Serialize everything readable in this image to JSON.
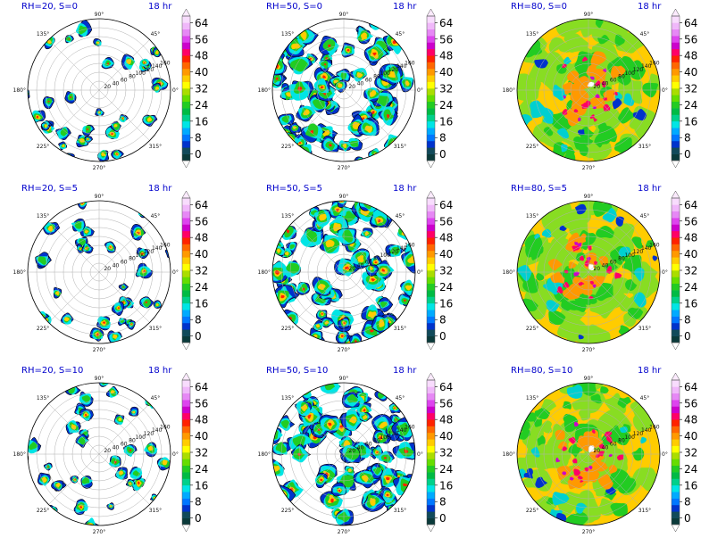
{
  "chart_data": {
    "type": "heatmap",
    "subtype": "polar-filled-contour",
    "layout": "3x3 grid",
    "colorbar": {
      "ticks": [
        0,
        8,
        16,
        24,
        32,
        40,
        48,
        56,
        64
      ],
      "colors": [
        "#0a3a3a",
        "#114a5a",
        "#0033cc",
        "#0077ff",
        "#00aaff",
        "#00e5e5",
        "#00d08a",
        "#00bb44",
        "#22cc22",
        "#66dd00",
        "#aadd00",
        "#ffff00",
        "#ffcc00",
        "#ff9900",
        "#ff6600",
        "#ff2200",
        "#ff0066",
        "#cc00cc",
        "#dd44ee",
        "#e688f5",
        "#f0b8fa",
        "#f8dcfd"
      ],
      "extend": "both"
    },
    "angular_ticks": [
      "90°",
      "45°",
      "0°",
      "315°",
      "270°",
      "225°",
      "180°",
      "135°"
    ],
    "radial_ticks": [
      "20",
      "40",
      "60",
      "80",
      "100",
      "120",
      "140",
      "160"
    ],
    "panels": [
      {
        "title": "RH=20, S=0",
        "time": "18 hr",
        "rh": 20,
        "s": 0
      },
      {
        "title": "RH=50, S=0",
        "time": "18 hr",
        "rh": 50,
        "s": 0
      },
      {
        "title": "RH=80, S=0",
        "time": "18 hr",
        "rh": 80,
        "s": 0
      },
      {
        "title": "RH=20, S=5",
        "time": "18 hr",
        "rh": 20,
        "s": 5
      },
      {
        "title": "RH=50, S=5",
        "time": "18 hr",
        "rh": 50,
        "s": 5
      },
      {
        "title": "RH=80, S=5",
        "time": "18 hr",
        "rh": 80,
        "s": 5
      },
      {
        "title": "RH=20, S=10",
        "time": "18 hr",
        "rh": 20,
        "s": 10
      },
      {
        "title": "RH=50, S=10",
        "time": "18 hr",
        "rh": 50,
        "s": 10
      },
      {
        "title": "RH=80, S=10",
        "time": "18 hr",
        "rh": 80,
        "s": 10
      }
    ]
  }
}
